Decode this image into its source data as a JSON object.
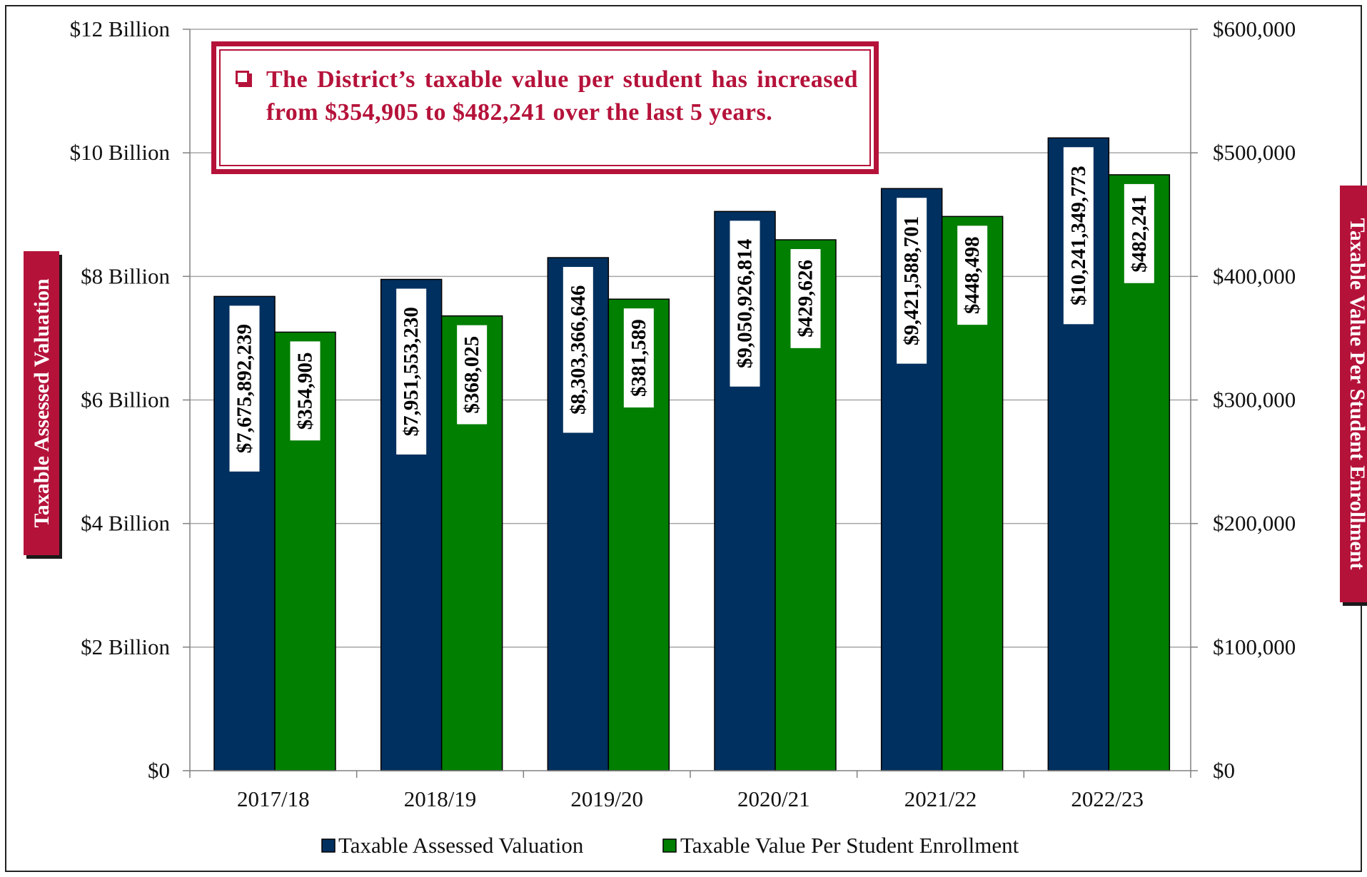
{
  "chart_data": {
    "type": "bar",
    "categories": [
      "2017/18",
      "2018/19",
      "2019/20",
      "2020/21",
      "2021/22",
      "2022/23"
    ],
    "series": [
      {
        "name": "Taxable Assessed Valuation",
        "axis": "left",
        "color": "#00305f",
        "values": [
          7675892239,
          7951553230,
          8303366646,
          9050926814,
          9421588701,
          10241349773
        ],
        "labels": [
          "$7,675,892,239",
          "$7,951,553,230",
          "$8,303,366,646",
          "$9,050,926,814",
          "$9,421,588,701",
          "$10,241,349,773"
        ]
      },
      {
        "name": "Taxable Value Per Student Enrollment",
        "axis": "right",
        "color": "#007f00",
        "values": [
          354905,
          368025,
          381589,
          429626,
          448498,
          482241
        ],
        "labels": [
          "$354,905",
          "$368,025",
          "$381,589",
          "$429,626",
          "$448,498",
          "$482,241"
        ]
      }
    ],
    "ylabel_left": "Taxable Assessed Valuation",
    "ylabel_right": "Taxable Value Per Student Enrollment",
    "ylim_left": [
      0,
      12000000000
    ],
    "ylim_right": [
      0,
      600000
    ],
    "yticks_left": [
      "$0",
      "$2 Billion",
      "$4 Billion",
      "$6 Billion",
      "$8 Billion",
      "$10 Billion",
      "$12 Billion"
    ],
    "yticks_right": [
      "$0",
      "$100,000",
      "$200,000",
      "$300,000",
      "$400,000",
      "$500,000",
      "$600,000"
    ],
    "grid": true,
    "legend_position": "bottom",
    "annotation": "The District’s taxable value per student has increased from $354,905 to $482,241 over the last 5 years.",
    "accent_color": "#b5123a"
  }
}
